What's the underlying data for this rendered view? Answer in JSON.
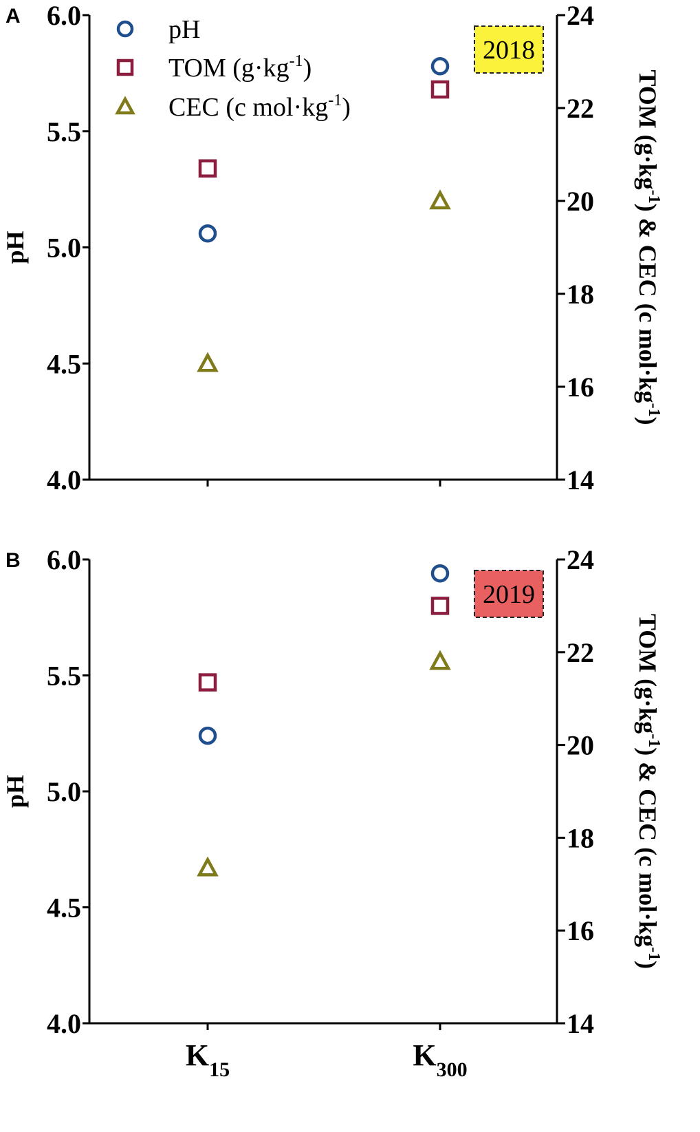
{
  "chart_data": [
    {
      "type": "scatter",
      "panel_label": "A",
      "year": "2018",
      "year_color": "#FBF33B",
      "categories": [
        "K15",
        "K300"
      ],
      "categories_display": [
        {
          "base": "K",
          "sub": "15"
        },
        {
          "base": "K",
          "sub": "300"
        }
      ],
      "ylabel": "pH",
      "y2label": "TOM (g·kg-1) & CEC (c mol·kg-1)",
      "y2label_display": {
        "a": "TOM (g·kg",
        "b": "-1",
        "c": ") & CEC (c mol·kg",
        "d": "-1",
        "e": ")"
      },
      "ylim": [
        4.0,
        6.0
      ],
      "y2lim": [
        14,
        24
      ],
      "yticks": [
        "4.0",
        "4.5",
        "5.0",
        "5.5",
        "6.0"
      ],
      "y2ticks": [
        "14",
        "16",
        "18",
        "20",
        "22",
        "24"
      ],
      "legend_position": "top-left",
      "series": [
        {
          "name": "pH",
          "axis": "left",
          "marker": "circle",
          "color": "#1F4E8C",
          "values": [
            5.06,
            5.78
          ]
        },
        {
          "name": "TOM (g·kg-1)",
          "axis": "right",
          "marker": "square",
          "color": "#8B1E3F",
          "values": [
            20.7,
            22.4
          ]
        },
        {
          "name": "CEC (c mol·kg-1)",
          "axis": "right",
          "marker": "triangle",
          "color": "#7F7A1A",
          "values": [
            16.5,
            20.0
          ]
        }
      ],
      "legend_display": [
        {
          "base": "pH",
          "sup": "",
          "tail": ""
        },
        {
          "base": "TOM  (g·kg",
          "sup": "-1",
          "tail": ")"
        },
        {
          "base": "CEC (c mol·kg",
          "sup": "-1",
          "tail": ")"
        }
      ]
    },
    {
      "type": "scatter",
      "panel_label": "B",
      "year": "2019",
      "year_color": "#E86060",
      "categories": [
        "K15",
        "K300"
      ],
      "categories_display": [
        {
          "base": "K",
          "sub": "15"
        },
        {
          "base": "K",
          "sub": "300"
        }
      ],
      "ylabel": "pH",
      "y2label": "TOM (g·kg-1) & CEC (c mol·kg-1)",
      "y2label_display": {
        "a": "TOM (g·kg",
        "b": "-1",
        "c": ") & CEC (c mol·kg",
        "d": "-1",
        "e": ")"
      },
      "ylim": [
        4.0,
        6.0
      ],
      "y2lim": [
        14,
        24
      ],
      "yticks": [
        "4.0",
        "4.5",
        "5.0",
        "5.5",
        "6.0"
      ],
      "y2ticks": [
        "14",
        "16",
        "18",
        "20",
        "22",
        "24"
      ],
      "series": [
        {
          "name": "pH",
          "axis": "left",
          "marker": "circle",
          "color": "#1F4E8C",
          "values": [
            5.24,
            5.94
          ]
        },
        {
          "name": "TOM (g·kg-1)",
          "axis": "right",
          "marker": "square",
          "color": "#8B1E3F",
          "values": [
            21.35,
            23.0
          ]
        },
        {
          "name": "CEC (c mol·kg-1)",
          "axis": "right",
          "marker": "triangle",
          "color": "#7F7A1A",
          "values": [
            17.35,
            21.8
          ]
        }
      ]
    }
  ]
}
